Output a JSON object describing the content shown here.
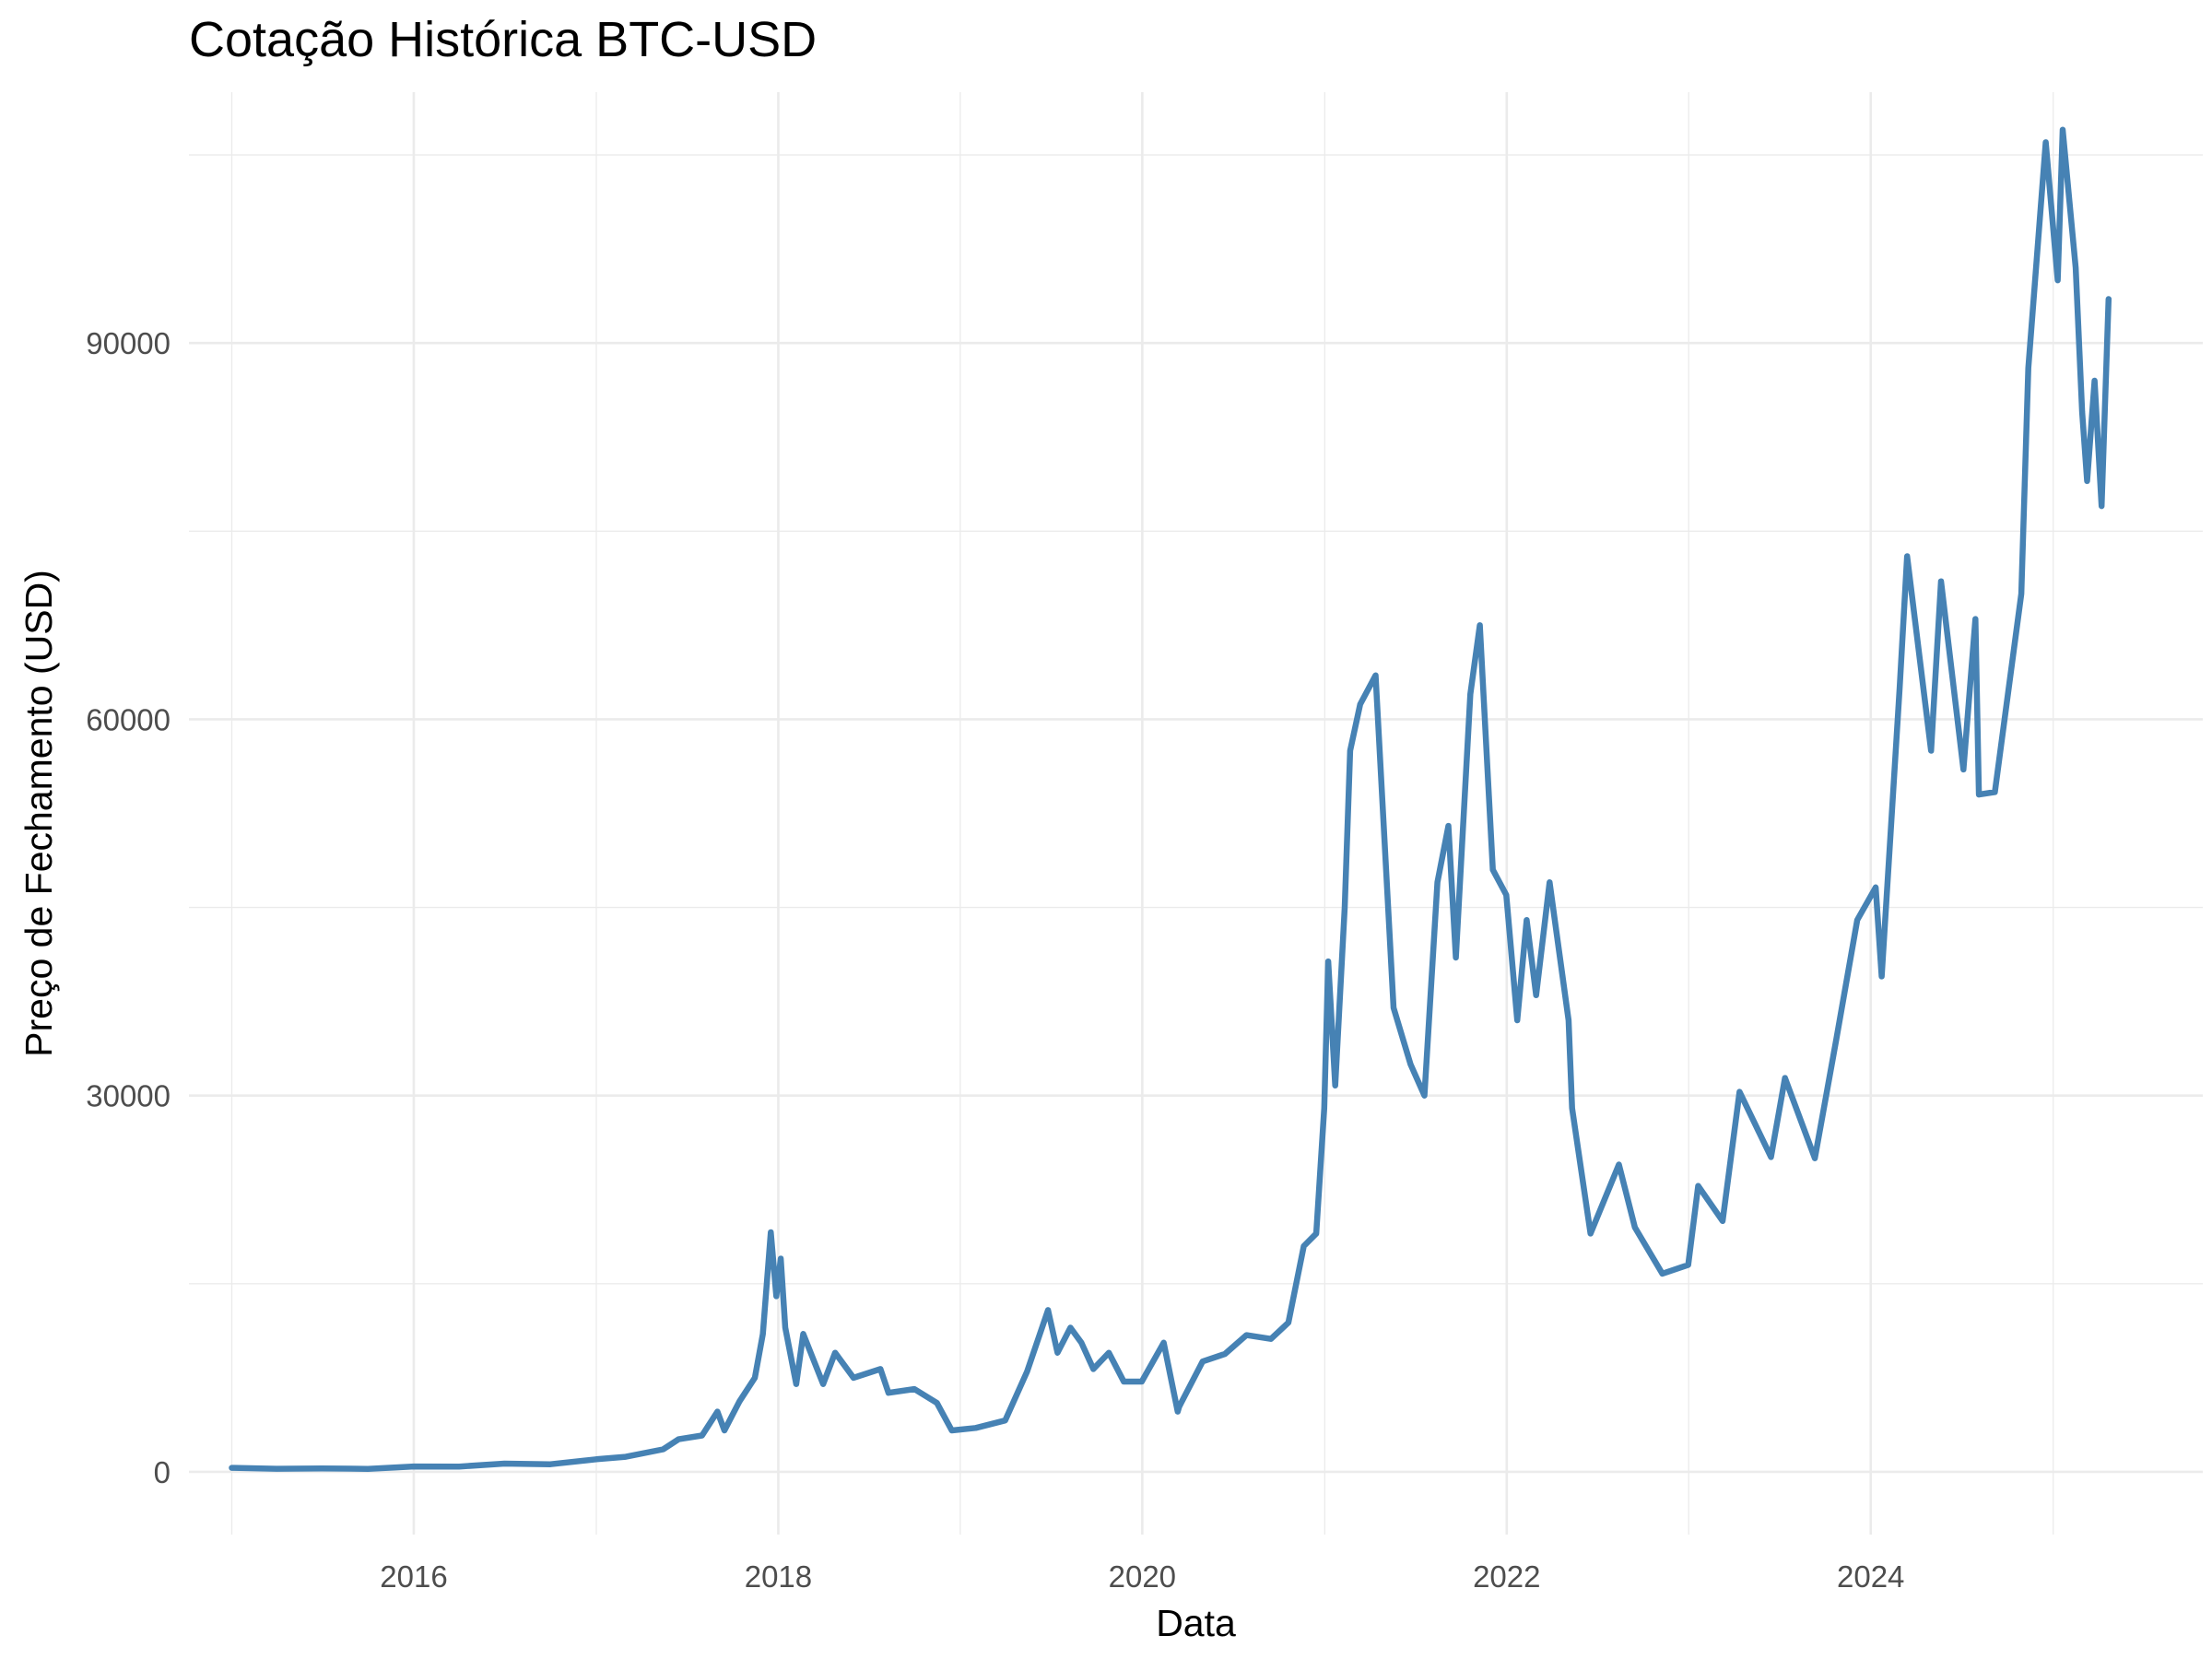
{
  "chart_data": {
    "type": "line",
    "title": "Cotação Histórica BTC-USD",
    "xlabel": "Data",
    "ylabel": "Preço de Fechamento (USD)",
    "x_ticks": [
      "2016",
      "2018",
      "2020",
      "2022",
      "2024"
    ],
    "y_ticks": [
      "0",
      "30000",
      "60000",
      "90000"
    ],
    "xlim": [
      "2014-10-07",
      "2025-10-28"
    ],
    "ylim": [
      -5000,
      110000
    ],
    "grid": true,
    "line_color": "#4682B4",
    "series": [
      {
        "x": [
          "2015-01-01",
          "2015-04-01",
          "2015-07-01",
          "2015-10-01",
          "2016-01-01",
          "2016-04-01",
          "2016-07-01",
          "2016-10-01",
          "2017-01-01",
          "2017-03-01",
          "2017-05-15",
          "2017-06-15",
          "2017-08-01",
          "2017-09-01",
          "2017-09-15",
          "2017-10-15",
          "2017-11-15",
          "2017-12-01",
          "2017-12-17",
          "2017-12-28",
          "2018-01-06",
          "2018-01-15",
          "2018-02-06",
          "2018-02-20",
          "2018-04-01",
          "2018-04-25",
          "2018-06-01",
          "2018-07-25",
          "2018-08-10",
          "2018-10-01",
          "2018-11-15",
          "2018-12-15",
          "2019-02-01",
          "2019-04-01",
          "2019-05-15",
          "2019-06-26",
          "2019-07-15",
          "2019-08-10",
          "2019-09-01",
          "2019-09-25",
          "2019-10-26",
          "2019-11-25",
          "2019-12-31",
          "2020-02-13",
          "2020-03-12",
          "2020-03-15",
          "2020-05-01",
          "2020-06-15",
          "2020-07-28",
          "2020-09-15",
          "2020-10-20",
          "2020-11-20",
          "2020-12-15",
          "2020-12-31",
          "2021-01-08",
          "2021-01-22",
          "2021-02-10",
          "2021-02-21",
          "2021-03-13",
          "2021-04-13",
          "2021-05-19",
          "2021-06-22",
          "2021-07-20",
          "2021-08-15",
          "2021-09-06",
          "2021-09-21",
          "2021-10-20",
          "2021-11-08",
          "2021-12-04",
          "2021-12-31",
          "2022-01-22",
          "2022-02-10",
          "2022-03-01",
          "2022-03-28",
          "2022-05-05",
          "2022-05-12",
          "2022-06-18",
          "2022-08-14",
          "2022-09-15",
          "2022-11-09",
          "2022-12-31",
          "2023-01-20",
          "2023-03-10",
          "2023-04-13",
          "2023-06-15",
          "2023-07-13",
          "2023-09-11",
          "2023-10-24",
          "2023-12-05",
          "2024-01-11",
          "2024-01-23",
          "2024-02-28",
          "2024-03-14",
          "2024-05-01",
          "2024-05-21",
          "2024-07-05",
          "2024-07-29",
          "2024-08-05",
          "2024-09-06",
          "2024-10-29",
          "2024-11-12",
          "2024-12-17",
          "2025-01-10",
          "2025-01-20",
          "2025-02-15",
          "2025-02-28",
          "2025-03-10",
          "2025-03-25",
          "2025-04-08",
          "2025-04-22"
        ],
        "y": [
          320,
          250,
          270,
          240,
          430,
          420,
          660,
          610,
          1000,
          1200,
          1800,
          2600,
          2900,
          4800,
          3300,
          5600,
          7500,
          11000,
          19100,
          14000,
          17000,
          11500,
          7000,
          11000,
          7000,
          9500,
          7500,
          8200,
          6300,
          6600,
          5500,
          3300,
          3500,
          4100,
          8000,
          12900,
          9500,
          11500,
          10300,
          8200,
          9500,
          7200,
          7200,
          10300,
          4800,
          5200,
          8800,
          9400,
          10900,
          10600,
          11900,
          18000,
          19000,
          29000,
          40700,
          30800,
          45000,
          57500,
          61200,
          63500,
          37000,
          32500,
          30000,
          47000,
          51500,
          41000,
          62000,
          67500,
          48000,
          46000,
          36000,
          44000,
          38000,
          47000,
          36000,
          29000,
          19000,
          24500,
          19500,
          15800,
          16500,
          22800,
          20000,
          30300,
          25100,
          31400,
          25000,
          34500,
          44000,
          46600,
          39500,
          62500,
          73000,
          57500,
          71000,
          56000,
          68000,
          54000,
          54200,
          70000,
          88000,
          106000,
          95000,
          107000,
          96000,
          84500,
          79000,
          87000,
          77000,
          93500
        ]
      }
    ]
  }
}
